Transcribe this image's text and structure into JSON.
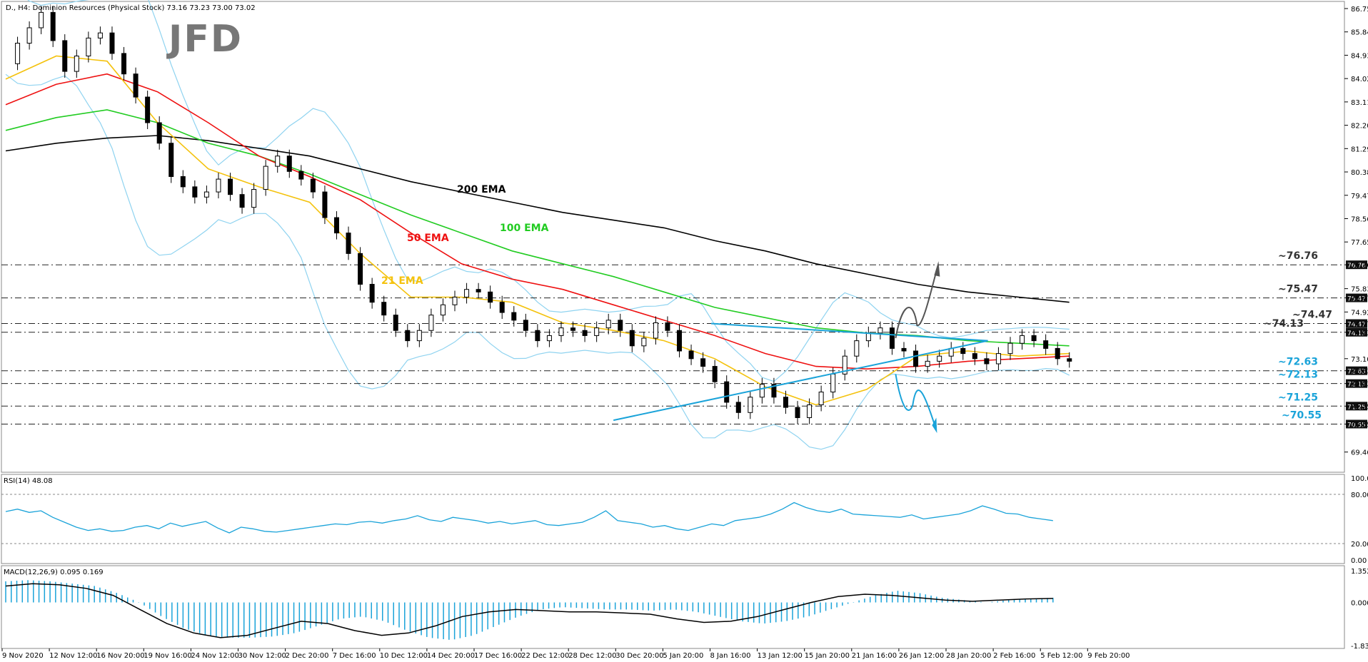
{
  "header": {
    "title": "D., H4:  Dominion Resources (Physical Stock)  73.16 73.23 73.00 73.02",
    "logo": "JFD"
  },
  "chart_data": {
    "type": "candlestick",
    "symbol": "D.",
    "timeframe": "H4",
    "instrument": "Dominion Resources (Physical Stock)",
    "ohlc": [
      73.16,
      73.23,
      73.0,
      73.02
    ],
    "ylim": [
      68.7,
      87.0
    ],
    "price_ticks": [
      "86.75",
      "85.84",
      "84.93",
      "84.02",
      "83.11",
      "82.20",
      "81.29",
      "80.38",
      "79.47",
      "78.56",
      "77.65",
      "76.76",
      "75.83",
      "75.47",
      "74.92",
      "74.47",
      "74.13",
      "73.10",
      "72.63",
      "72.13",
      "71.25",
      "70.55",
      "69.46"
    ],
    "x_labels": [
      "9 Nov 2020",
      "12 Nov 12:00",
      "16 Nov 20:00",
      "19 Nov 16:00",
      "24 Nov 12:00",
      "30 Nov 12:00",
      "2 Dec 20:00",
      "7 Dec 16:00",
      "10 Dec 12:00",
      "14 Dec 20:00",
      "17 Dec 16:00",
      "22 Dec 12:00",
      "28 Dec 12:00",
      "30 Dec 20:00",
      "5 Jan 20:00",
      "8 Jan 16:00",
      "13 Jan 12:00",
      "15 Jan 20:00",
      "21 Jan 16:00",
      "26 Jan 12:00",
      "28 Jan 20:00",
      "2 Feb 16:00",
      "5 Feb 12:00",
      "9 Feb 20:00"
    ],
    "close_path": [
      84.6,
      85.4,
      86.0,
      86.6,
      85.5,
      84.3,
      84.9,
      85.6,
      85.8,
      85.0,
      84.2,
      83.3,
      82.3,
      81.5,
      80.2,
      79.8,
      79.4,
      79.6,
      80.1,
      79.5,
      79.0,
      79.7,
      80.6,
      81.0,
      80.4,
      80.1,
      79.6,
      78.6,
      78.0,
      77.2,
      76.0,
      75.3,
      74.8,
      74.2,
      73.8,
      74.2,
      74.8,
      75.2,
      75.5,
      75.8,
      75.7,
      75.3,
      74.9,
      74.6,
      74.2,
      73.8,
      74.0,
      74.3,
      74.2,
      74.0,
      74.3,
      74.6,
      74.2,
      73.6,
      73.9,
      74.5,
      74.2,
      73.4,
      73.1,
      72.8,
      72.2,
      71.4,
      71.0,
      71.6,
      72.1,
      71.6,
      71.2,
      70.8,
      71.3,
      71.8,
      72.5,
      73.2,
      73.8,
      74.1,
      74.3,
      73.5,
      73.4,
      72.8,
      73.0,
      73.2,
      73.5,
      73.3,
      73.1,
      72.9,
      73.3,
      73.7,
      74.0,
      73.8,
      73.5,
      73.1,
      73.0
    ],
    "levels": [
      {
        "label": "~76.76",
        "value": 76.76,
        "color": "#333333"
      },
      {
        "label": "~75.47",
        "value": 75.47,
        "color": "#333333"
      },
      {
        "label": "~74.47",
        "value": 74.47,
        "color": "#333333"
      },
      {
        "label": "~74.13",
        "value": 74.13,
        "color": "#333333"
      },
      {
        "label": "~72.63",
        "value": 72.63,
        "color": "#1aa3d9"
      },
      {
        "label": "~72.13",
        "value": 72.13,
        "color": "#1aa3d9"
      },
      {
        "label": "~71.25",
        "value": 71.25,
        "color": "#1aa3d9"
      },
      {
        "label": "~70.55",
        "value": 70.55,
        "color": "#1aa3d9"
      }
    ],
    "ema": [
      {
        "label": "200 EMA",
        "color": "#000000",
        "values": [
          81.2,
          81.5,
          81.7,
          81.8,
          81.6,
          81.3,
          81.0,
          80.5,
          80.0,
          79.6,
          79.2,
          78.8,
          78.5,
          78.2,
          77.7,
          77.3,
          76.8,
          76.4,
          76.0,
          75.7,
          75.5,
          75.3
        ]
      },
      {
        "label": "100 EMA",
        "color": "#22cc22",
        "values": [
          82.0,
          82.5,
          82.8,
          82.3,
          81.5,
          81.0,
          80.3,
          79.5,
          78.7,
          78.0,
          77.3,
          76.8,
          76.3,
          75.7,
          75.1,
          74.7,
          74.3,
          74.1,
          74.0,
          73.8,
          73.7,
          73.6
        ]
      },
      {
        "label": "50 EMA",
        "color": "#ee1111",
        "values": [
          83.0,
          83.8,
          84.2,
          83.5,
          82.3,
          81.0,
          80.2,
          79.3,
          78.0,
          76.8,
          76.2,
          75.8,
          75.2,
          74.6,
          74.0,
          73.3,
          72.8,
          72.7,
          72.8,
          73.0,
          73.1,
          73.2
        ]
      },
      {
        "label": "21 EMA",
        "color": "#f4c20d",
        "values": [
          84.0,
          84.9,
          84.7,
          82.3,
          80.5,
          79.8,
          79.2,
          77.2,
          75.5,
          75.5,
          75.3,
          74.5,
          74.2,
          73.8,
          73.1,
          72.0,
          71.3,
          71.9,
          73.2,
          73.4,
          73.2,
          73.3
        ]
      }
    ],
    "triangle": {
      "upper": [
        [
          74.47,
          0.65
        ],
        [
          73.8,
          0.905
        ]
      ],
      "lower": [
        [
          70.7,
          0.56
        ],
        [
          73.8,
          0.905
        ]
      ]
    },
    "rsi": {
      "label": "RSI(14) 48.08",
      "ticks": [
        "100.00",
        "80.00",
        "20.00",
        "0.00"
      ],
      "values": [
        59,
        62,
        58,
        60,
        52,
        46,
        40,
        36,
        38,
        35,
        36,
        40,
        42,
        38,
        45,
        41,
        44,
        47,
        39,
        33,
        40,
        38,
        35,
        34,
        36,
        38,
        40,
        42,
        44,
        43,
        46,
        47,
        45,
        48,
        50,
        54,
        49,
        47,
        52,
        50,
        48,
        45,
        47,
        44,
        46,
        48,
        43,
        42,
        44,
        46,
        52,
        60,
        48,
        46,
        44,
        40,
        42,
        38,
        36,
        40,
        44,
        42,
        48,
        50,
        52,
        56,
        62,
        70,
        64,
        60,
        58,
        62,
        56,
        55,
        54,
        53,
        52,
        55,
        50,
        52,
        54,
        56,
        60,
        66,
        62,
        57,
        56,
        52,
        50,
        48
      ]
    },
    "macd": {
      "label": "MACD(12,26,9) 0.095 0.169",
      "ticks": [
        "1.352",
        "0.000",
        "-1.837"
      ],
      "hist": [
        0.9,
        0.95,
        0.9,
        0.8,
        0.7,
        0.4,
        0.0,
        -0.6,
        -1.1,
        -1.4,
        -1.5,
        -1.5,
        -1.45,
        -1.3,
        -1.0,
        -0.7,
        -0.6,
        -0.8,
        -1.2,
        -1.5,
        -1.6,
        -1.4,
        -1.0,
        -0.6,
        -0.3,
        -0.2,
        -0.25,
        -0.3,
        -0.3,
        -0.35,
        -0.3,
        -0.4,
        -0.6,
        -0.8,
        -0.9,
        -0.8,
        -0.6,
        -0.3,
        0.0,
        0.3,
        0.5,
        0.4,
        0.2,
        0.1,
        0.0,
        0.1,
        0.15,
        0.2
      ],
      "signal": [
        0.7,
        0.8,
        0.75,
        0.6,
        0.3,
        -0.3,
        -0.9,
        -1.3,
        -1.5,
        -1.4,
        -1.1,
        -0.8,
        -0.9,
        -1.2,
        -1.4,
        -1.3,
        -1.0,
        -0.6,
        -0.4,
        -0.3,
        -0.35,
        -0.4,
        -0.4,
        -0.45,
        -0.5,
        -0.7,
        -0.85,
        -0.8,
        -0.6,
        -0.3,
        0.0,
        0.25,
        0.35,
        0.3,
        0.2,
        0.1,
        0.05,
        0.1,
        0.15,
        0.17
      ]
    }
  }
}
